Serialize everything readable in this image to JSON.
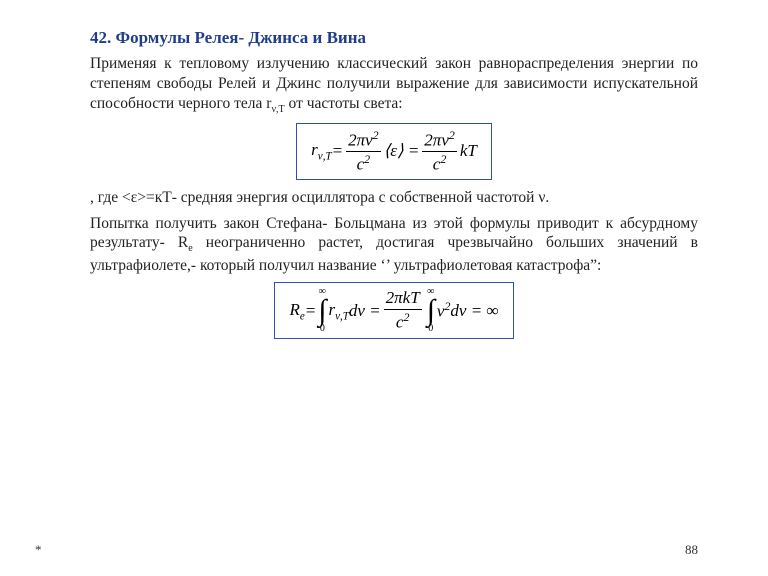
{
  "title": "42. Формулы Релея- Джинса и Вина",
  "para1": "Применяя к тепловому излучению классический закон равнораспределения энергии по степеням свободы Релей и Джинс получили выражение для зависимости испускательной способности черного тела r",
  "para1b": " от частоты света:",
  "para1_sub": "ν,T",
  "formula1": {
    "lhs": "r",
    "lhs_sub": "ν,T",
    "eq": " = ",
    "num1a": "2πν",
    "num1exp": "2",
    "den1a": "c",
    "den1exp": "2",
    "mid": "⟨ε⟩ = ",
    "num2a": "2πν",
    "num2exp": "2",
    "den2a": "c",
    "den2exp": "2",
    "tail": "kT"
  },
  "para2": ", где <ε>=кТ- средняя энергия осциллятора с собственной частотой ν.",
  "para3a": "Попытка получить закон Стефана- Больцмана из этой формулы приводит к абсурдному результату- R",
  "para3_sub": "e",
  "para3b": " неограниченно растет, достигая чрезвычайно больших значений в ультрафиолете,- который получил название ‘’ ультрафиолетовая катастрофа”:",
  "formula2": {
    "lhs": "R",
    "lhs_sub": "e",
    "eq": " = ",
    "int_up": "∞",
    "int_lo": "0",
    "intgr1_body": "r",
    "intgr1_sub": "ν,T",
    "dnu": "dν = ",
    "numa": "2πkT",
    "dena": "c",
    "denexp": "2",
    "intgr2_body": "ν",
    "intgr2_exp": "2",
    "d2": "dν = ∞"
  },
  "pagenum": "88",
  "star": "*",
  "colors": {
    "title": "#1f3d8a",
    "border": "#3050b0",
    "text": "#000000",
    "bg": "#ffffff"
  }
}
